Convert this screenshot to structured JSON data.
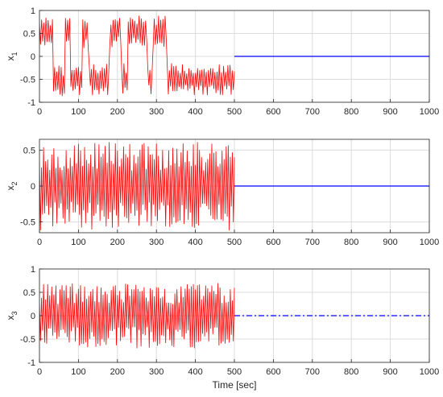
{
  "chart_data": [
    {
      "type": "line",
      "ylabel_base": "x",
      "ylabel_sub": "1",
      "xlabel": "",
      "xlim": [
        0,
        1000
      ],
      "ylim": [
        -1,
        1
      ],
      "x_ticks": [
        "0",
        "100",
        "200",
        "300",
        "400",
        "500",
        "600",
        "700",
        "800",
        "900",
        "1000"
      ],
      "y_ticks": [
        "1",
        "0.5",
        "0",
        "-0.5",
        "-1"
      ],
      "grid": true,
      "series": [
        {
          "color": "#ff0000",
          "x_range": [
            0,
            500
          ],
          "oscillation_amplitude": 0.35,
          "oscillation_cycles": 90,
          "centers": [
            {
              "x": [
                0,
                35
              ],
              "y": 0.55
            },
            {
              "x": [
                35,
                65
              ],
              "y": -0.55
            },
            {
              "x": [
                65,
                80
              ],
              "y": 0.5
            },
            {
              "x": [
                80,
                110
              ],
              "y": -0.5
            },
            {
              "x": [
                110,
                125
              ],
              "y": 0.5
            },
            {
              "x": [
                125,
                180
              ],
              "y": -0.5
            },
            {
              "x": [
                180,
                210
              ],
              "y": 0.55
            },
            {
              "x": [
                210,
                225
              ],
              "y": -0.5
            },
            {
              "x": [
                225,
                275
              ],
              "y": 0.55
            },
            {
              "x": [
                275,
                290
              ],
              "y": -0.5
            },
            {
              "x": [
                290,
                325
              ],
              "y": 0.55
            },
            {
              "x": [
                325,
                500
              ],
              "y": -0.5
            }
          ]
        },
        {
          "color": "#0000ff",
          "style": "solid",
          "x": [
            500,
            1000
          ],
          "y": [
            0,
            0
          ]
        }
      ]
    },
    {
      "type": "line",
      "ylabel_base": "x",
      "ylabel_sub": "2",
      "xlabel": "",
      "xlim": [
        0,
        1000
      ],
      "ylim": [
        -0.65,
        0.65
      ],
      "x_ticks": [
        "0",
        "100",
        "200",
        "300",
        "400",
        "500",
        "600",
        "700",
        "800",
        "900",
        "1000"
      ],
      "y_ticks": [
        "0.5",
        "0",
        "-0.5"
      ],
      "y_tick_values": [
        0.5,
        0,
        -0.5
      ],
      "grid": true,
      "series": [
        {
          "color": "#ff0000",
          "x_range": [
            0,
            500
          ],
          "oscillation_amplitude": 0.62,
          "oscillation_cycles": 95,
          "centers": [
            {
              "x": [
                0,
                500
              ],
              "y": 0
            }
          ]
        },
        {
          "color": "#0000ff",
          "style": "solid",
          "x": [
            500,
            1000
          ],
          "y": [
            0,
            0
          ]
        }
      ]
    },
    {
      "type": "line",
      "ylabel_base": "x",
      "ylabel_sub": "3",
      "xlabel": "Time [sec]",
      "xlim": [
        0,
        1000
      ],
      "ylim": [
        -1,
        1
      ],
      "x_ticks": [
        "0",
        "100",
        "200",
        "300",
        "400",
        "500",
        "600",
        "700",
        "800",
        "900",
        "1000"
      ],
      "y_ticks": [
        "1",
        "0.5",
        "0",
        "-0.5",
        "-1"
      ],
      "grid": true,
      "series": [
        {
          "color": "#ff0000",
          "x_range": [
            0,
            500
          ],
          "oscillation_amplitude": 0.7,
          "oscillation_cycles": 95,
          "centers": [
            {
              "x": [
                0,
                500
              ],
              "y": 0
            }
          ]
        },
        {
          "color": "#0000ff",
          "style": "dashdot",
          "x": [
            500,
            1000
          ],
          "y": [
            0,
            0
          ]
        }
      ]
    }
  ]
}
